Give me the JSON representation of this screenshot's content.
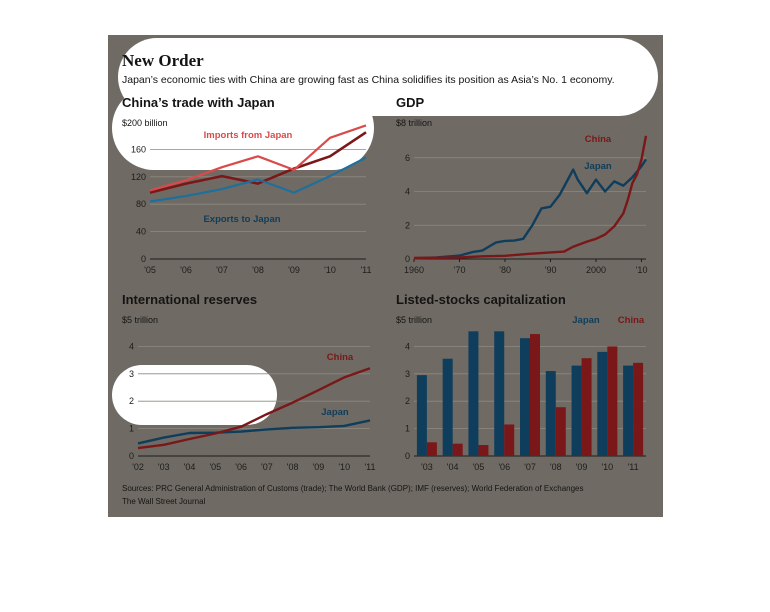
{
  "header": {
    "title": "New Order",
    "subtitle": "Japan’s economic ties with China are growing fast as China solidifies its position as Asia’s No. 1 economy."
  },
  "footer": {
    "sources": "Sources: PRC General Administration of Customs (trade); The World Bank (GDP); IMF (reserves); World Federation of Exchanges",
    "credit": "The Wall Street Journal"
  },
  "colors": {
    "panel": "#6f6b64",
    "china": "#7a1718",
    "japan": "#0f3d5c",
    "imports": "#d94b4b",
    "exports": "#1f6f9c",
    "highlight": "#ffffff"
  },
  "chart_data": [
    {
      "type": "line",
      "title": "China’s trade with Japan",
      "unit_label": "$200 billion",
      "x": [
        2005,
        2006,
        2007,
        2008,
        2009,
        2010,
        2011
      ],
      "xticks": [
        "'05",
        "'06",
        "'07",
        "'08",
        "'09",
        "'10",
        "'11"
      ],
      "yticks": [
        "0",
        "40",
        "80",
        "120",
        "160"
      ],
      "ylim": [
        0,
        200
      ],
      "series": [
        {
          "name": "Imports from Japan",
          "color": "#d94b4b",
          "values": [
            100,
            115,
            134,
            150,
            130,
            177,
            195
          ]
        },
        {
          "name": "Exports to Japan",
          "color": "#1f6f9c",
          "values": [
            84,
            92,
            102,
            116,
            97,
            121,
            148
          ]
        },
        {
          "color": "#7a1718",
          "values": [
            97,
            110,
            121,
            110,
            132,
            150,
            185
          ]
        }
      ]
    },
    {
      "type": "line",
      "title": "GDP",
      "unit_label": "$8 trillion",
      "xticks": [
        "1960",
        "’70",
        "’80",
        "’90",
        "2000",
        "’10"
      ],
      "xtick_values": [
        1960,
        1970,
        1980,
        1990,
        2000,
        2010
      ],
      "yticks": [
        "0",
        "2",
        "4",
        "6"
      ],
      "ylim": [
        0,
        8
      ],
      "xlim": [
        1960,
        2011
      ],
      "series": [
        {
          "name": "China",
          "color": "#7a1718",
          "x": [
            1960,
            1970,
            1975,
            1980,
            1985,
            1990,
            1993,
            1995,
            1998,
            2000,
            2002,
            2004,
            2006,
            2007,
            2008,
            2009,
            2010,
            2011
          ],
          "values": [
            0.06,
            0.09,
            0.16,
            0.19,
            0.3,
            0.39,
            0.44,
            0.73,
            1.03,
            1.2,
            1.45,
            1.93,
            2.7,
            3.5,
            4.5,
            5.0,
            5.9,
            7.3
          ]
        },
        {
          "name": "Japan",
          "color": "#0f3d5c",
          "x": [
            1960,
            1965,
            1970,
            1973,
            1975,
            1978,
            1980,
            1982,
            1984,
            1986,
            1988,
            1990,
            1992,
            1994,
            1995,
            1996,
            1998,
            2000,
            2002,
            2004,
            2006,
            2008,
            2010,
            2011
          ],
          "values": [
            0.05,
            0.09,
            0.2,
            0.42,
            0.5,
            0.98,
            1.07,
            1.09,
            1.2,
            2.0,
            3.0,
            3.1,
            3.8,
            4.8,
            5.3,
            4.7,
            3.9,
            4.7,
            4.0,
            4.6,
            4.35,
            4.85,
            5.5,
            5.9
          ]
        }
      ]
    },
    {
      "type": "line",
      "title": "International reserves",
      "unit_label": "$5 trillion",
      "x": [
        2002,
        2003,
        2004,
        2005,
        2006,
        2007,
        2008,
        2009,
        2010,
        2011
      ],
      "xticks": [
        "'02",
        "'03",
        "'04",
        "'05",
        "'06",
        "'07",
        "'08",
        "'09",
        "'10",
        "'11"
      ],
      "yticks": [
        "0",
        "1",
        "2",
        "3",
        "4"
      ],
      "ylim": [
        0,
        5
      ],
      "series": [
        {
          "name": "China",
          "color": "#7a1718",
          "values": [
            0.29,
            0.41,
            0.62,
            0.82,
            1.07,
            1.53,
            1.95,
            2.4,
            2.87,
            3.2
          ]
        },
        {
          "name": "Japan",
          "color": "#0f3d5c",
          "values": [
            0.46,
            0.67,
            0.84,
            0.85,
            0.89,
            0.97,
            1.03,
            1.05,
            1.1,
            1.3
          ]
        }
      ]
    },
    {
      "type": "bar",
      "title": "Listed-stocks capitalization",
      "unit_label": "$5 trillion",
      "categories": [
        "'03",
        "'04",
        "'05",
        "'06",
        "'07",
        "'08",
        "'09",
        "'10",
        "'11"
      ],
      "yticks": [
        "0",
        "1",
        "2",
        "3",
        "4"
      ],
      "ylim": [
        0,
        5
      ],
      "series": [
        {
          "name": "Japan",
          "color": "#0f3d5c",
          "values": [
            2.95,
            3.55,
            4.55,
            4.55,
            4.3,
            3.1,
            3.3,
            3.8,
            3.3
          ]
        },
        {
          "name": "China",
          "color": "#7a1718",
          "values": [
            0.5,
            0.45,
            0.4,
            1.15,
            4.45,
            1.78,
            3.57,
            4.0,
            3.4
          ]
        }
      ]
    }
  ]
}
